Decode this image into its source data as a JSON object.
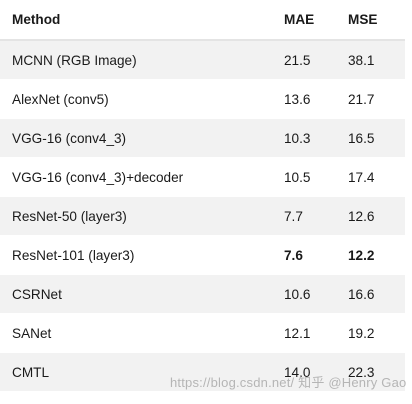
{
  "table": {
    "headers": {
      "method": "Method",
      "mae": "MAE",
      "mse": "MSE"
    },
    "rows": [
      {
        "method": "MCNN (RGB Image)",
        "mae": "21.5",
        "mse": "38.1",
        "bold": false
      },
      {
        "method": "AlexNet (conv5)",
        "mae": "13.6",
        "mse": "21.7",
        "bold": false
      },
      {
        "method": "VGG-16 (conv4_3)",
        "mae": "10.3",
        "mse": "16.5",
        "bold": false
      },
      {
        "method": "VGG-16 (conv4_3)+decoder",
        "mae": "10.5",
        "mse": "17.4",
        "bold": false
      },
      {
        "method": "ResNet-50 (layer3)",
        "mae": "7.7",
        "mse": "12.6",
        "bold": false
      },
      {
        "method": "ResNet-101 (layer3)",
        "mae": "7.6",
        "mse": "12.2",
        "bold": true
      },
      {
        "method": "CSRNet",
        "mae": "10.6",
        "mse": "16.6",
        "bold": false
      },
      {
        "method": "SANet",
        "mae": "12.1",
        "mse": "19.2",
        "bold": false
      },
      {
        "method": "CMTL",
        "mae": "14.0",
        "mse": "22.3",
        "bold": false
      }
    ]
  },
  "watermark": {
    "text": "https://blog.csdn.net/ 知乎 @Henry Gao"
  }
}
